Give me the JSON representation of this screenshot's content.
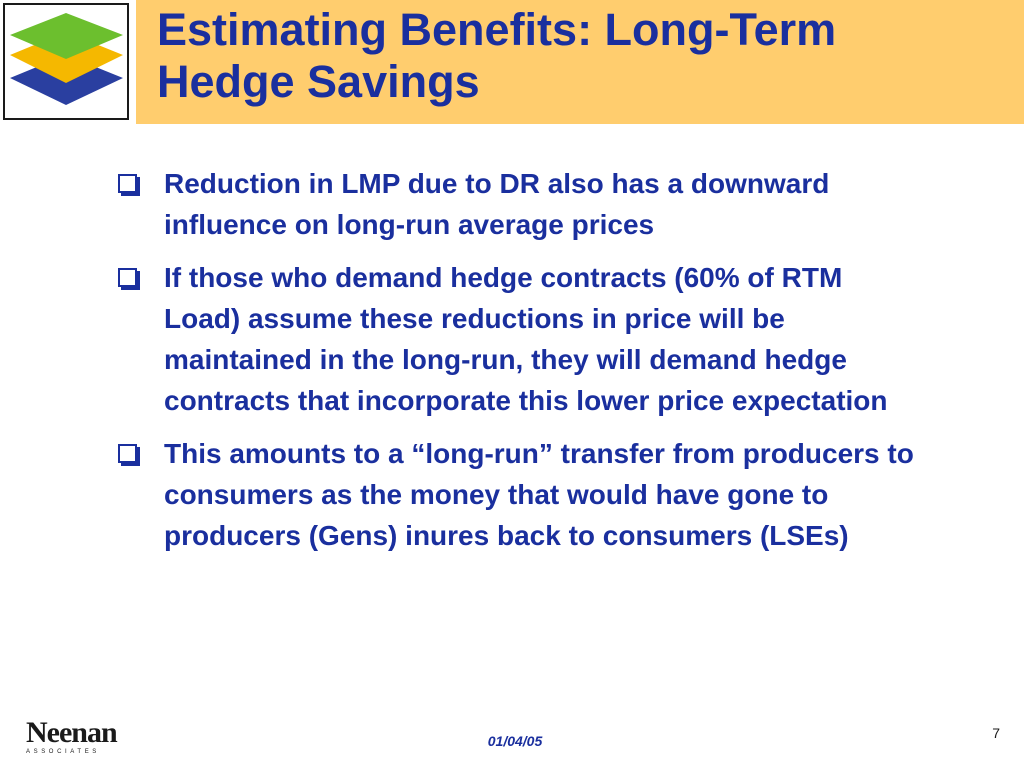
{
  "slide": {
    "title_lines": [
      "Estimating Benefits: Long-Term",
      "Hedge Savings"
    ],
    "bullets": [
      "Reduction in LMP due to DR also has a downward influence on long-run average prices",
      "If those who demand hedge contracts (60% of RTM Load) assume these reductions in price will be maintained in the long-run, they will demand hedge contracts that incorporate this lower price expectation",
      "This amounts to a “long-run” transfer from producers to consumers as the money that would have gone to producers (Gens) inures back to consumers (LSEs)"
    ],
    "bullet_icon": "hollow-square-bullet-icon"
  },
  "header": {
    "logo_icon": "stacked-layers-logo-icon",
    "layer_colors": [
      "#6cbf2e",
      "#f5b800",
      "#2a3fa0"
    ],
    "band_color": "#ffcd6e"
  },
  "footer": {
    "company_logo_word": "Neenan",
    "company_logo_sub": "ASSOCIATES",
    "date": "01/04/05",
    "page_number": "7"
  },
  "theme": {
    "text_color": "#1a2f9e"
  }
}
